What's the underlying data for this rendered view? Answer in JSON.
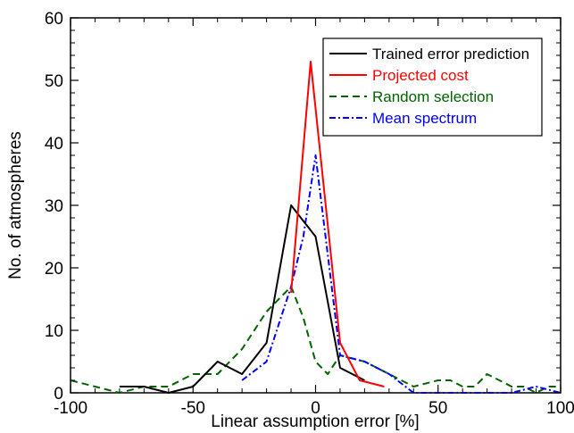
{
  "chart_data": {
    "type": "line",
    "title": "",
    "xlabel": "Linear assumption error [%]",
    "ylabel": "No. of atmospheres",
    "xlim": [
      -100,
      100
    ],
    "ylim": [
      0,
      60
    ],
    "xticks": [
      -100,
      -50,
      0,
      50,
      100
    ],
    "yticks": [
      0,
      10,
      20,
      30,
      40,
      50,
      60
    ],
    "xtick_labels": [
      "-100",
      "-50",
      "0",
      "50",
      "100"
    ],
    "ytick_labels": [
      "0",
      "10",
      "20",
      "30",
      "40",
      "50",
      "60"
    ],
    "grid": false,
    "legend_position": "top-right",
    "series": [
      {
        "name": "Trained error prediction",
        "color": "#000000",
        "style": "solid",
        "x": [
          -80,
          -70,
          -60,
          -50,
          -40,
          -30,
          -20,
          -10,
          0,
          10,
          20
        ],
        "y": [
          1,
          1,
          0,
          1,
          5,
          3,
          8,
          30,
          25,
          4,
          2
        ]
      },
      {
        "name": "Projected cost",
        "color": "#ff0000",
        "style": "solid",
        "x": [
          -10,
          -2,
          10,
          18,
          28
        ],
        "y": [
          16,
          53,
          8,
          2,
          1
        ]
      },
      {
        "name": "Random selection",
        "color": "#006400",
        "style": "dashed",
        "x": [
          -100,
          -90,
          -80,
          -70,
          -60,
          -50,
          -40,
          -30,
          -20,
          -10,
          -5,
          0,
          5,
          10,
          20,
          30,
          40,
          50,
          55,
          60,
          65,
          70,
          75,
          80,
          85,
          90,
          95,
          100
        ],
        "y": [
          2,
          1,
          0,
          1,
          1,
          3,
          3,
          7,
          13,
          17,
          12,
          5,
          3,
          6,
          5,
          3,
          1,
          2,
          2,
          1,
          1,
          3,
          2,
          1,
          1,
          0,
          1,
          1
        ]
      },
      {
        "name": "Mean spectrum",
        "color": "#0000ff",
        "style": "dashdot",
        "x": [
          -30,
          -20,
          -10,
          -5,
          0,
          10,
          20,
          30,
          40,
          50,
          60,
          70,
          80,
          90,
          100
        ],
        "y": [
          2,
          5,
          17,
          25,
          38,
          6,
          5,
          3,
          0,
          0,
          0,
          0,
          0,
          1,
          0
        ]
      }
    ]
  }
}
